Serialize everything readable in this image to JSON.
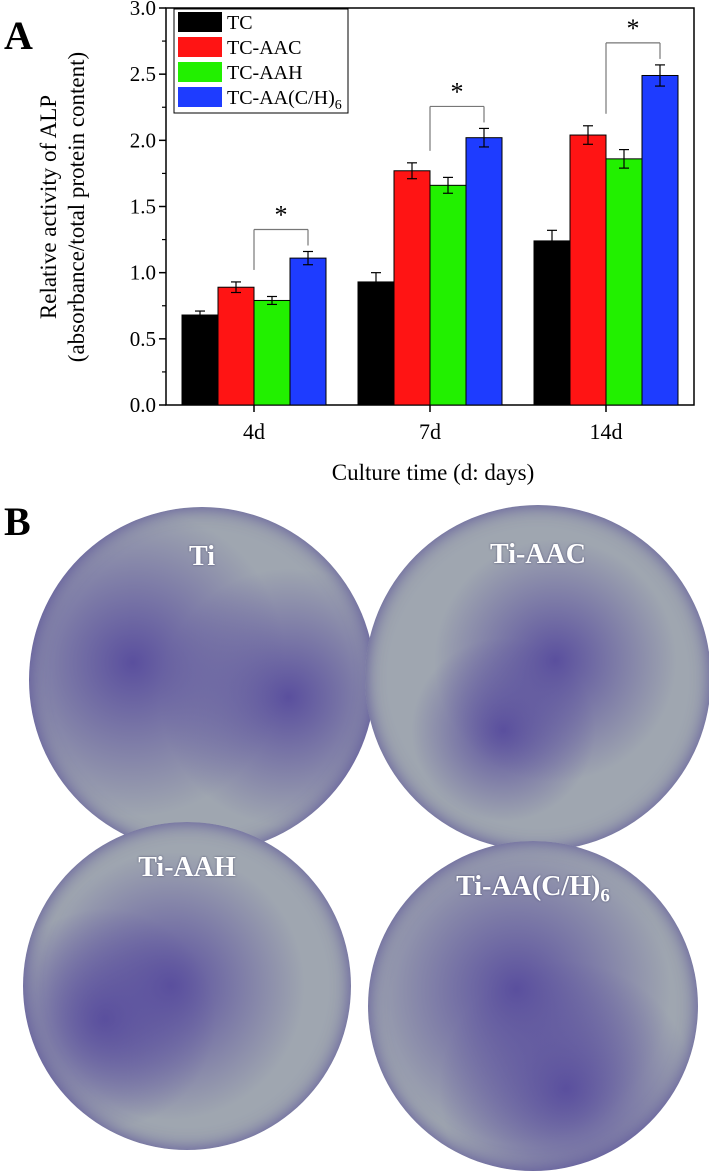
{
  "panel_a_label": "A",
  "panel_b_label": "B",
  "chart_data": {
    "type": "bar",
    "categories": [
      "4d",
      "7d",
      "14d"
    ],
    "xlabel": "Culture time (d: days)",
    "ylabel_line1": "Relative activity of ALP",
    "ylabel_line2": "(absorbance/total protein content)",
    "ylim": [
      0,
      3.0
    ],
    "yticks": [
      "0.0",
      "0.5",
      "1.0",
      "1.5",
      "2.0",
      "2.5",
      "3.0"
    ],
    "legend_position": "top-left",
    "grid": false,
    "significance_marker": "*",
    "series": [
      {
        "name": "TC",
        "name_sub": "",
        "color": "#000000",
        "values": [
          0.68,
          0.93,
          1.24
        ],
        "errors": [
          0.03,
          0.07,
          0.08
        ]
      },
      {
        "name": "TC-AAC",
        "name_sub": "",
        "color": "#ff1414",
        "values": [
          0.89,
          1.77,
          2.04
        ],
        "errors": [
          0.04,
          0.06,
          0.07
        ]
      },
      {
        "name": "TC-AAH",
        "name_sub": "",
        "color": "#22f000",
        "values": [
          0.79,
          1.66,
          1.86
        ],
        "errors": [
          0.03,
          0.06,
          0.07
        ]
      },
      {
        "name": "TC-AA(C/H)",
        "name_sub": "6",
        "color": "#1e3cff",
        "values": [
          1.11,
          2.02,
          2.49
        ],
        "errors": [
          0.05,
          0.07,
          0.08
        ]
      }
    ]
  },
  "plates": [
    {
      "label": "Ti",
      "label_sub": ""
    },
    {
      "label": "Ti-AAC",
      "label_sub": ""
    },
    {
      "label": "Ti-AAH",
      "label_sub": ""
    },
    {
      "label": "Ti-AA(C/H)",
      "label_sub": "6"
    }
  ],
  "colors": {
    "plate_base": "#9fa6b0",
    "stain": "#5a4f9e"
  }
}
